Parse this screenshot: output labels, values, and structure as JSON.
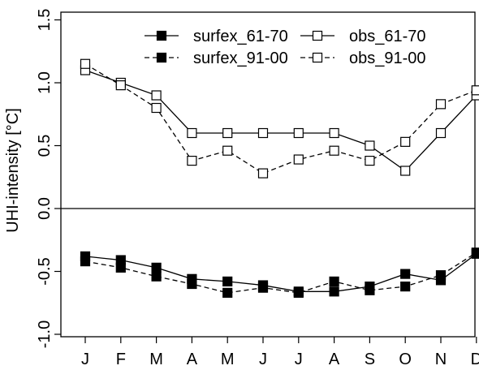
{
  "chart_data": {
    "type": "line",
    "title": "",
    "xlabel": "",
    "ylabel": "UHI-intensity [°C]",
    "categories": [
      "J",
      "F",
      "M",
      "A",
      "M",
      "J",
      "J",
      "A",
      "S",
      "O",
      "N",
      "D"
    ],
    "ylim": [
      -1.1,
      1.6
    ],
    "yticks": [
      "-1.0",
      "-0.5",
      "0.0",
      "0.5",
      "1.0",
      "1.5"
    ],
    "ytick_values": [
      -1.0,
      -0.5,
      0.0,
      0.5,
      1.0,
      1.5
    ],
    "reference_line": 0,
    "grid": false,
    "legend_position": "top-right",
    "series": [
      {
        "name": "surfex_61-70",
        "line": "solid",
        "marker": "filled-square",
        "values": [
          -0.38,
          -0.41,
          -0.47,
          -0.56,
          -0.58,
          -0.61,
          -0.66,
          -0.66,
          -0.62,
          -0.52,
          -0.57,
          -0.36
        ]
      },
      {
        "name": "surfex_91-00",
        "line": "dashed",
        "marker": "filled-square",
        "values": [
          -0.42,
          -0.47,
          -0.54,
          -0.6,
          -0.67,
          -0.63,
          -0.67,
          -0.58,
          -0.65,
          -0.62,
          -0.53,
          -0.35
        ]
      },
      {
        "name": "obs_61-70",
        "line": "solid",
        "marker": "open-square",
        "values": [
          1.1,
          1.0,
          0.9,
          0.6,
          0.6,
          0.6,
          0.6,
          0.6,
          0.5,
          0.3,
          0.6,
          0.9
        ]
      },
      {
        "name": "obs_91-00",
        "line": "dashed",
        "marker": "open-square",
        "values": [
          1.15,
          0.98,
          0.8,
          0.38,
          0.46,
          0.28,
          0.39,
          0.46,
          0.38,
          0.53,
          0.83,
          0.94
        ]
      }
    ]
  }
}
